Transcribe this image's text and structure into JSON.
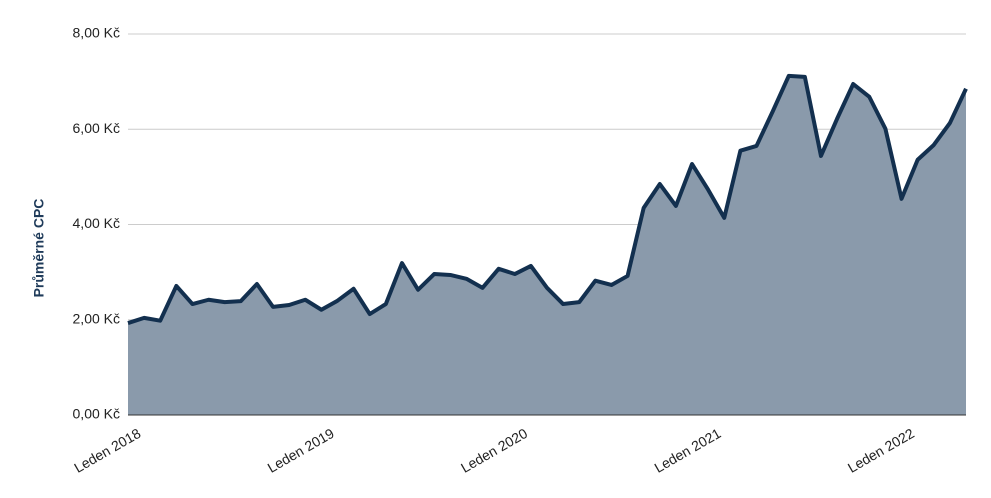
{
  "chart_data": {
    "type": "area",
    "y_label": "Průměrné CPC",
    "categories": [
      "Leden 2018",
      null,
      null,
      null,
      null,
      null,
      null,
      null,
      null,
      null,
      null,
      null,
      "Leden 2019",
      null,
      null,
      null,
      null,
      null,
      null,
      null,
      null,
      null,
      null,
      null,
      "Leden 2020",
      null,
      null,
      null,
      null,
      null,
      null,
      null,
      null,
      null,
      null,
      null,
      "Leden 2021",
      null,
      null,
      null,
      null,
      null,
      null,
      null,
      null,
      null,
      null,
      null,
      "Leden 2022",
      null,
      null,
      null,
      null
    ],
    "series": [
      {
        "color": "#13304f",
        "fill": "#8a9aab",
        "values": [
          1.93,
          2.04,
          1.98,
          2.71,
          2.33,
          2.42,
          2.37,
          2.39,
          2.75,
          2.27,
          2.31,
          2.42,
          2.21,
          2.4,
          2.65,
          2.12,
          2.33,
          3.19,
          2.63,
          2.96,
          2.94,
          2.86,
          2.67,
          3.07,
          2.96,
          3.13,
          2.67,
          2.33,
          2.37,
          2.82,
          2.73,
          2.92,
          4.35,
          4.85,
          4.39,
          5.27,
          4.73,
          4.14,
          5.55,
          5.65,
          6.37,
          7.12,
          7.1,
          5.44,
          6.22,
          6.95,
          6.68,
          6.01,
          4.54,
          5.36,
          5.67,
          6.13,
          6.85
        ]
      }
    ],
    "ylim": [
      0,
      8
    ],
    "yticks": [
      {
        "value": 0,
        "label": "0,00 Kč"
      },
      {
        "value": 2,
        "label": "2,00 Kč"
      },
      {
        "value": 4,
        "label": "4,00 Kč"
      },
      {
        "value": 6,
        "label": "6,00 Kč"
      },
      {
        "value": 8,
        "label": "8,00 Kč"
      }
    ],
    "grid": true
  }
}
